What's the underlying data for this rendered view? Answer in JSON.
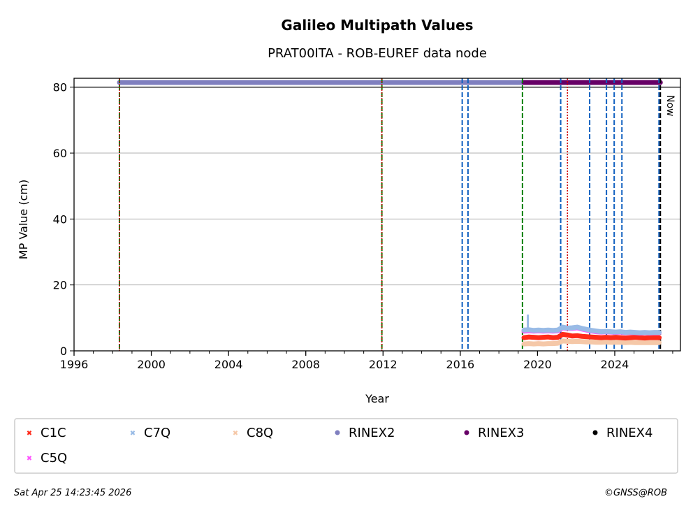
{
  "chart_data": {
    "type": "scatter",
    "title": "Galileo Multipath Values",
    "subtitle": "PRAT00ITA - ROB-EUREF data node",
    "xlabel": "Year",
    "ylabel": "MP Value (cm)",
    "xlim": [
      1996,
      2027.4
    ],
    "ylim": [
      0,
      82.7
    ],
    "xticks": [
      1996,
      2000,
      2004,
      2008,
      2012,
      2016,
      2020,
      2024
    ],
    "xtick_labels": [
      "1996",
      "2000",
      "2004",
      "2008",
      "2012",
      "2016",
      "2020",
      "2024"
    ],
    "yticks": [
      0,
      20,
      40,
      60,
      80
    ],
    "ytick_labels": [
      "0",
      "20",
      "40",
      "60",
      "80"
    ],
    "grid": "horizontal",
    "now_label": "Now",
    "now_year": 2026.36,
    "green_dashed_lines": [
      1998.35,
      2011.94,
      2019.22
    ],
    "red_dotted_lines": [
      1998.35,
      2011.94,
      2021.55
    ],
    "blue_dashed_lines": [
      2016.1,
      2016.4,
      2021.2,
      2022.7,
      2023.57,
      2023.97,
      2024.37,
      2026.29
    ],
    "rinex_periods": [
      {
        "name": "RINEX2",
        "start": 1998.35,
        "end": 2019.22,
        "color": "#7f7fbf"
      },
      {
        "name": "RINEX3",
        "start": 2019.3,
        "end": 2026.36,
        "color": "#660066"
      }
    ],
    "series_x": [
      2019.3,
      2019.55,
      2019.8,
      2020.05,
      2020.3,
      2020.55,
      2020.8,
      2021.05,
      2021.3,
      2021.55,
      2021.8,
      2022.05,
      2022.3,
      2022.55,
      2022.8,
      2023.05,
      2023.3,
      2023.55,
      2023.8,
      2024.05,
      2024.3,
      2024.55,
      2024.8,
      2025.05,
      2025.3,
      2025.55,
      2025.8,
      2026.05,
      2026.3
    ],
    "series": [
      {
        "name": "C1C",
        "color": "#ff2a1a",
        "marker": "x",
        "values": [
          4.0,
          4.2,
          4.1,
          4.0,
          4.1,
          4.2,
          4.0,
          4.1,
          5.0,
          4.8,
          4.5,
          4.6,
          4.4,
          4.3,
          4.2,
          4.1,
          4.0,
          4.1,
          4.0,
          4.1,
          4.0,
          3.9,
          4.0,
          4.1,
          4.0,
          3.9,
          4.0,
          4.0,
          4.0
        ]
      },
      {
        "name": "C7Q",
        "color": "#99bbe6",
        "marker": "x",
        "values": [
          6.3,
          6.4,
          6.2,
          6.3,
          6.2,
          6.3,
          6.2,
          6.3,
          7.2,
          6.9,
          7.0,
          7.2,
          6.8,
          6.5,
          6.2,
          6.0,
          5.8,
          5.9,
          5.8,
          5.7,
          5.8,
          5.6,
          5.7,
          5.6,
          5.5,
          5.6,
          5.5,
          5.6,
          5.6
        ]
      },
      {
        "name": "C8Q",
        "color": "#f5c8a8",
        "marker": "x",
        "values": [
          2.1,
          2.2,
          2.1,
          2.2,
          2.1,
          2.2,
          2.2,
          2.3,
          3.0,
          2.9,
          2.8,
          2.9,
          2.8,
          2.7,
          2.7,
          2.6,
          2.6,
          2.7,
          2.6,
          2.6,
          2.6,
          2.5,
          2.6,
          2.5,
          2.5,
          2.5,
          2.5,
          2.5,
          2.5
        ]
      },
      {
        "name": "C5Q",
        "color": "#ff55ff",
        "marker": "x",
        "values": [
          6.0,
          6.1,
          6.0,
          6.1,
          6.0,
          6.1,
          6.0,
          6.1,
          7.0,
          6.8,
          6.8,
          7.0,
          6.6,
          6.3,
          6.0,
          5.8,
          5.7,
          5.8,
          5.7,
          5.6,
          5.7,
          5.5,
          5.6,
          5.5,
          5.4,
          5.5,
          5.4,
          5.5,
          5.5
        ]
      }
    ],
    "spike": {
      "series": "C7Q",
      "x": 2019.5,
      "y": 11
    },
    "legend": {
      "placement": "below",
      "entries": [
        {
          "label": "C1C",
          "color": "#ff2a1a",
          "marker": "x"
        },
        {
          "label": "C7Q",
          "color": "#99bbe6",
          "marker": "x"
        },
        {
          "label": "C8Q",
          "color": "#f5c8a8",
          "marker": "x"
        },
        {
          "label": "RINEX2",
          "color": "#7f7fbf",
          "marker": "dot"
        },
        {
          "label": "RINEX3",
          "color": "#660066",
          "marker": "dot"
        },
        {
          "label": "RINEX4",
          "color": "#000000",
          "marker": "dot"
        },
        {
          "label": "C5Q",
          "color": "#ff55ff",
          "marker": "x"
        }
      ]
    }
  },
  "footer": {
    "timestamp": "Sat Apr 25 14:23:45 2026",
    "copyright": "©GNSS@ROB"
  }
}
